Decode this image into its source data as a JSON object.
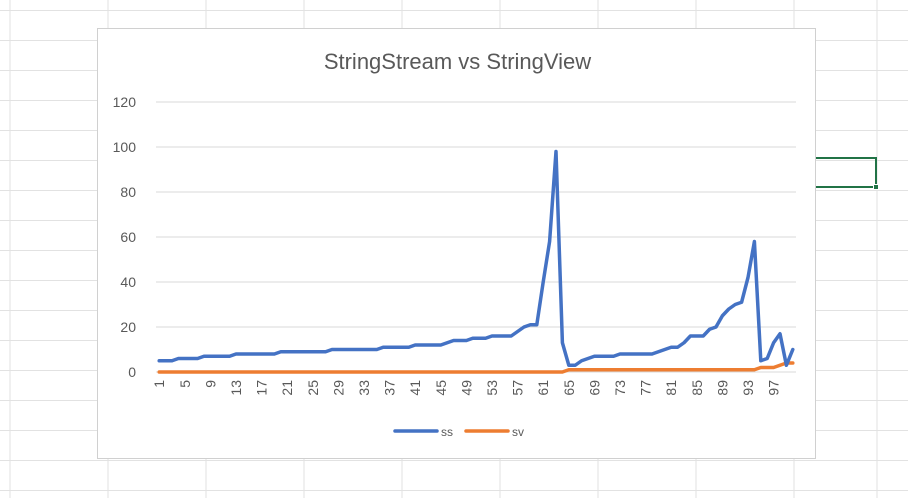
{
  "chart_data": {
    "type": "line",
    "title": "StringStream vs StringView",
    "xlabel": "",
    "ylabel": "",
    "ylim": [
      0,
      120
    ],
    "yticks": [
      0,
      20,
      40,
      60,
      80,
      100,
      120
    ],
    "x": [
      1,
      2,
      3,
      4,
      5,
      6,
      7,
      8,
      9,
      10,
      11,
      12,
      13,
      14,
      15,
      16,
      17,
      18,
      19,
      20,
      21,
      22,
      23,
      24,
      25,
      26,
      27,
      28,
      29,
      30,
      31,
      32,
      33,
      34,
      35,
      36,
      37,
      38,
      39,
      40,
      41,
      42,
      43,
      44,
      45,
      46,
      47,
      48,
      49,
      50,
      51,
      52,
      53,
      54,
      55,
      56,
      57,
      58,
      59,
      60,
      61,
      62,
      63,
      64,
      65,
      66,
      67,
      68,
      69,
      70,
      71,
      72,
      73,
      74,
      75,
      76,
      77,
      78,
      79,
      80,
      81,
      82,
      83,
      84,
      85,
      86,
      87,
      88,
      89,
      90,
      91,
      92,
      93,
      94,
      95,
      96,
      97,
      98,
      99,
      100
    ],
    "xtick_labels": [
      "1",
      "5",
      "9",
      "13",
      "17",
      "21",
      "25",
      "29",
      "33",
      "37",
      "41",
      "45",
      "49",
      "53",
      "57",
      "61",
      "65",
      "69",
      "73",
      "77",
      "81",
      "85",
      "89",
      "93",
      "97"
    ],
    "grid": true,
    "legend_position": "bottom",
    "series": [
      {
        "name": "ss",
        "color": "#4472c4",
        "values": [
          5,
          5,
          5,
          6,
          6,
          6,
          6,
          7,
          7,
          7,
          7,
          7,
          8,
          8,
          8,
          8,
          8,
          8,
          8,
          9,
          9,
          9,
          9,
          9,
          9,
          9,
          9,
          10,
          10,
          10,
          10,
          10,
          10,
          10,
          10,
          11,
          11,
          11,
          11,
          11,
          12,
          12,
          12,
          12,
          12,
          13,
          14,
          14,
          14,
          15,
          15,
          15,
          16,
          16,
          16,
          16,
          18,
          20,
          21,
          21,
          40,
          58,
          98,
          13,
          3,
          3,
          5,
          6,
          7,
          7,
          7,
          7,
          8,
          8,
          8,
          8,
          8,
          8,
          9,
          10,
          11,
          11,
          13,
          16,
          16,
          16,
          19,
          20,
          25,
          28,
          30,
          31,
          42,
          58,
          5,
          6,
          13,
          17,
          3,
          10
        ]
      },
      {
        "name": "sv",
        "color": "#ed7d31",
        "values": [
          0,
          0,
          0,
          0,
          0,
          0,
          0,
          0,
          0,
          0,
          0,
          0,
          0,
          0,
          0,
          0,
          0,
          0,
          0,
          0,
          0,
          0,
          0,
          0,
          0,
          0,
          0,
          0,
          0,
          0,
          0,
          0,
          0,
          0,
          0,
          0,
          0,
          0,
          0,
          0,
          0,
          0,
          0,
          0,
          0,
          0,
          0,
          0,
          0,
          0,
          0,
          0,
          0,
          0,
          0,
          0,
          0,
          0,
          0,
          0,
          0,
          0,
          0,
          0,
          1,
          1,
          1,
          1,
          1,
          1,
          1,
          1,
          1,
          1,
          1,
          1,
          1,
          1,
          1,
          1,
          1,
          1,
          1,
          1,
          1,
          1,
          1,
          1,
          1,
          1,
          1,
          1,
          1,
          1,
          2,
          2,
          2,
          3,
          4,
          4
        ]
      }
    ]
  }
}
